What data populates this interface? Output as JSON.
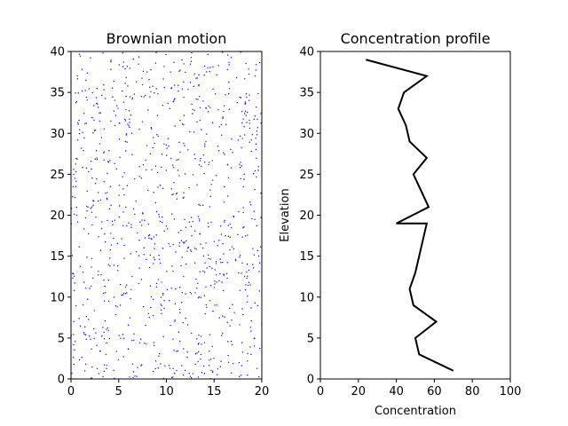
{
  "colors": {
    "background": "#ffffff",
    "scatter": "#0000ff",
    "line": "#000000",
    "axes": "#000000"
  },
  "chart_data": [
    {
      "type": "scatter",
      "title": "Brownian motion",
      "xlabel": "",
      "ylabel": "",
      "xlim": [
        0,
        20
      ],
      "ylim": [
        0,
        40
      ],
      "xticks": [
        "0",
        "5",
        "10",
        "15",
        "20"
      ],
      "yticks": [
        "0",
        "5",
        "10",
        "15",
        "20",
        "25",
        "30",
        "35",
        "40"
      ],
      "grid": false,
      "marker_color": "#0000ff",
      "point_count_approx": 1000,
      "distribution": "uniform over the axes area"
    },
    {
      "type": "line",
      "title": "Concentration profile",
      "xlabel": "Concentration",
      "ylabel": "Elevation",
      "xlim": [
        0,
        100
      ],
      "ylim": [
        0,
        40
      ],
      "xticks": [
        "0",
        "20",
        "40",
        "60",
        "80",
        "100"
      ],
      "yticks": [
        "0",
        "5",
        "10",
        "15",
        "20",
        "25",
        "30",
        "35",
        "40"
      ],
      "grid": false,
      "line_color": "#000000",
      "x": [
        70,
        52,
        50,
        61,
        49,
        47,
        50,
        52,
        54,
        56,
        40,
        57,
        53,
        49,
        56,
        47,
        45,
        41,
        44,
        56,
        24
      ],
      "y": [
        1,
        3,
        5,
        7,
        9,
        11,
        13,
        15,
        17,
        19,
        19,
        21,
        23,
        25,
        27,
        29,
        31,
        33,
        35,
        37,
        39
      ]
    }
  ]
}
